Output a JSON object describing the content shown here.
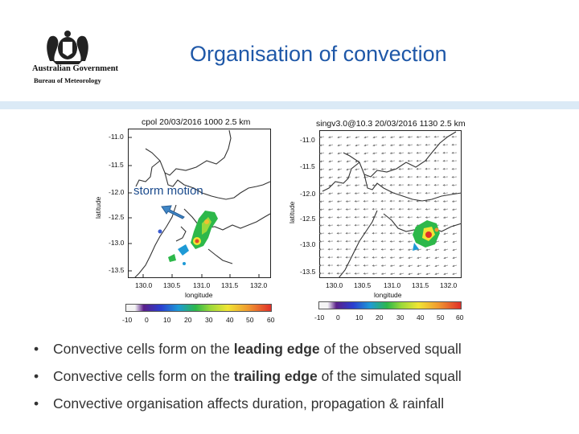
{
  "header": {
    "logo_line1": "Australian Government",
    "logo_line2": "Bureau of Meteorology",
    "title": "Organisation of convection"
  },
  "left_panel": {
    "title": "cpol 20/03/2016 1000 2.5 km",
    "xlabel": "longitude",
    "ylabel": "latitude",
    "xticks": [
      "130.0",
      "130.5",
      "131.0",
      "131.5",
      "132.0"
    ],
    "yticks": [
      "-11.0",
      "-11.5",
      "-12.0",
      "-12.5",
      "-13.0",
      "-13.5"
    ],
    "annotation": "storm motion",
    "colorbar_ticks": [
      "-10",
      "0",
      "10",
      "20",
      "30",
      "40",
      "50",
      "60"
    ]
  },
  "right_panel": {
    "title": "singv3.0@10.3 20/03/2016 1130 2.5 km",
    "xlabel": "longitude",
    "ylabel": "latitude",
    "xticks": [
      "130.0",
      "130.5",
      "131.0",
      "131.5",
      "132.0"
    ],
    "yticks": [
      "-11.0",
      "-11.5",
      "-12.0",
      "-12.5",
      "-13.0",
      "-13.5"
    ],
    "colorbar_ticks": [
      "-10",
      "0",
      "10",
      "20",
      "30",
      "40",
      "50",
      "60"
    ]
  },
  "colors": {
    "title": "#1f58a8",
    "band": "#dbeaf6",
    "arrow": "#3f86c6"
  },
  "bullets": [
    {
      "pre": "Convective cells form on the ",
      "bold": "leading edge",
      "post": " of the observed squall"
    },
    {
      "pre": "Convective cells form on the ",
      "bold": "trailing edge",
      "post": " of the simulated squall"
    },
    {
      "pre": "Convective organisation affects duration, propagation & rainfall",
      "bold": "",
      "post": ""
    }
  ]
}
